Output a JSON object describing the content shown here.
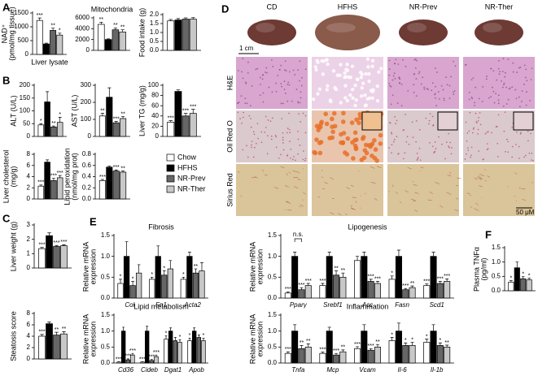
{
  "panels": [
    "A",
    "B",
    "C",
    "D",
    "E",
    "F"
  ],
  "legend": [
    {
      "name": "Chow",
      "color": "#ffffff"
    },
    {
      "name": "HFHS",
      "color": "#000000"
    },
    {
      "name": "NR-Prev",
      "color": "#666666"
    },
    {
      "name": "NR-Ther",
      "color": "#c8c8c8"
    }
  ],
  "panel_d": {
    "columns": [
      "CD",
      "HFHS",
      "NR-Prev",
      "NR-Ther"
    ],
    "rows": [
      "H&E",
      "Oil Red O",
      "Sirius Red"
    ],
    "scale_top": "1 cm",
    "scale_bottom": "50 μM"
  },
  "chart_data": [
    {
      "type": "bar",
      "ylabel": [
        "NAD⁺",
        "(pmol/mg tissue)"
      ],
      "xlabel": "Liver lysate",
      "ylim": [
        0,
        1500
      ],
      "yticks": [
        0,
        500,
        1000,
        1500
      ],
      "series": [
        {
          "values": [
            1230
          ],
          "errors": [
            90
          ],
          "stars": [
            "***"
          ]
        },
        {
          "values": [
            380
          ],
          "errors": [
            30
          ]
        },
        {
          "values": [
            870
          ],
          "errors": [
            80
          ],
          "stars": [
            "**"
          ]
        },
        {
          "values": [
            700
          ],
          "errors": [
            70
          ],
          "stars": [
            "*"
          ]
        }
      ]
    },
    {
      "type": "bar",
      "title": "Mitochondria",
      "ylim": [
        0,
        6000
      ],
      "yticks": [
        0,
        2000,
        4000,
        6000
      ],
      "series": [
        {
          "values": [
            4800
          ],
          "errors": [
            400
          ],
          "stars": [
            "**"
          ]
        },
        {
          "values": [
            2000
          ],
          "errors": [
            120
          ]
        },
        {
          "values": [
            3800
          ],
          "errors": [
            350
          ],
          "stars": [
            "**"
          ]
        },
        {
          "values": [
            3400
          ],
          "errors": [
            400
          ],
          "stars": [
            "**"
          ]
        }
      ]
    },
    {
      "type": "bar",
      "ylabel": "Food intake (g)",
      "ylim": [
        0,
        2
      ],
      "yticks": [
        {
          "value": 0,
          "label": "0.0"
        },
        0.5,
        {
          "value": 1,
          "label": "1.0"
        },
        1.5,
        {
          "value": 2,
          "label": "2.0"
        }
      ],
      "series": [
        {
          "values": [
            1.65
          ],
          "errors": [
            0.08
          ]
        },
        {
          "values": [
            1.7
          ],
          "errors": [
            0.08
          ]
        },
        {
          "values": [
            1.75
          ],
          "errors": [
            0.07
          ]
        },
        {
          "values": [
            1.75
          ],
          "errors": [
            0.08
          ]
        }
      ]
    },
    {
      "type": "bar",
      "ylabel": "ALT (U/L)",
      "ylim": [
        0,
        200
      ],
      "yticks": [
        0,
        50,
        100,
        150,
        200
      ],
      "series": [
        {
          "values": [
            45
          ],
          "errors": [
            5
          ],
          "stars": [
            "*"
          ]
        },
        {
          "values": [
            135
          ],
          "errors": [
            40
          ]
        },
        {
          "values": [
            37
          ],
          "errors": [
            4
          ],
          "stars": [
            "**"
          ]
        },
        {
          "values": [
            55
          ],
          "errors": [
            20
          ],
          "stars": [
            "*"
          ]
        }
      ]
    },
    {
      "type": "bar",
      "ylabel": "AST (U/L)",
      "ylim": [
        0,
        300
      ],
      "yticks": [
        0,
        100,
        200,
        300
      ],
      "series": [
        {
          "values": [
            120
          ],
          "errors": [
            15
          ],
          "stars": [
            "**"
          ]
        },
        {
          "values": [
            230
          ],
          "errors": [
            55
          ]
        },
        {
          "values": [
            80
          ],
          "errors": [
            8
          ],
          "stars": [
            "***"
          ]
        },
        {
          "values": [
            105
          ],
          "errors": [
            12
          ],
          "stars": [
            "**"
          ]
        }
      ]
    },
    {
      "type": "bar",
      "ylabel": "Liver TG (mg/g)",
      "ylim": [
        0,
        100
      ],
      "yticks": [
        0,
        20,
        40,
        60,
        80,
        100
      ],
      "series": [
        {
          "values": [
            28
          ],
          "errors": [
            3
          ],
          "stars": [
            "***"
          ]
        },
        {
          "values": [
            88
          ],
          "errors": [
            3
          ]
        },
        {
          "values": [
            40
          ],
          "errors": [
            5
          ],
          "stars": [
            "***"
          ]
        },
        {
          "values": [
            45
          ],
          "errors": [
            8
          ],
          "stars": [
            "***"
          ]
        }
      ]
    },
    {
      "type": "bar",
      "ylabel": [
        "Liver cholesterol",
        "(mg/g)"
      ],
      "ylim": [
        0,
        8
      ],
      "yticks": [
        0,
        2,
        4,
        6,
        8
      ],
      "series": [
        {
          "values": [
            2.3
          ],
          "errors": [
            0.2
          ],
          "stars": [
            "***"
          ]
        },
        {
          "values": [
            6.6
          ],
          "errors": [
            0.4
          ]
        },
        {
          "values": [
            3.3
          ],
          "errors": [
            0.4
          ],
          "stars": [
            "***"
          ]
        },
        {
          "values": [
            3.8
          ],
          "errors": [
            0.4
          ],
          "stars": [
            "***"
          ]
        }
      ]
    },
    {
      "type": "bar",
      "ylabel": [
        "Lipid peroxidation",
        "(nmol/mg prot)"
      ],
      "ylim": [
        0,
        0.8
      ],
      "yticks": [
        {
          "value": 0,
          "label": "0.0"
        },
        0.2,
        0.4,
        0.6,
        0.8
      ],
      "series": [
        {
          "values": [
            0.33
          ],
          "errors": [
            0.02
          ],
          "stars": [
            "***"
          ]
        },
        {
          "values": [
            0.57
          ],
          "errors": [
            0.02
          ]
        },
        {
          "values": [
            0.5
          ],
          "errors": [
            0.02
          ],
          "stars": [
            "***"
          ]
        },
        {
          "values": [
            0.48
          ],
          "errors": [
            0.02
          ],
          "stars": [
            "**"
          ]
        }
      ]
    },
    {
      "type": "bar",
      "ylabel": "Liver weight (g)",
      "ylim": [
        0,
        3
      ],
      "yticks": [
        0,
        1,
        2,
        3
      ],
      "series": [
        {
          "values": [
            1.35
          ],
          "errors": [
            0.08
          ],
          "stars": [
            "***"
          ]
        },
        {
          "values": [
            2.25
          ],
          "errors": [
            0.2
          ]
        },
        {
          "values": [
            1.5
          ],
          "errors": [
            0.07
          ],
          "stars": [
            "***"
          ]
        },
        {
          "values": [
            1.55
          ],
          "errors": [
            0.07
          ],
          "stars": [
            "***"
          ]
        }
      ]
    },
    {
      "type": "bar",
      "ylabel": "Steatosis score",
      "ylim": [
        0,
        8
      ],
      "yticks": [
        0,
        2,
        4,
        6,
        8
      ],
      "series": [
        {
          "values": [
            4.0
          ],
          "errors": [
            0.3
          ],
          "stars": [
            "***"
          ]
        },
        {
          "values": [
            6.2
          ],
          "errors": [
            0.3
          ]
        },
        {
          "values": [
            4.2
          ],
          "errors": [
            0.5
          ],
          "stars": [
            "**"
          ]
        },
        {
          "values": [
            4.4
          ],
          "errors": [
            0.4
          ],
          "stars": [
            "**"
          ]
        }
      ]
    },
    {
      "type": "bar",
      "title": "Fibrosis",
      "ylabel": [
        "Relative mRNA",
        "expression"
      ],
      "categories": [
        "Col",
        "Fn1",
        "Acta2"
      ],
      "ylim": [
        0,
        1.5
      ],
      "yticks": [
        {
          "value": 0,
          "label": "0.0"
        },
        0.5,
        {
          "value": 1,
          "label": "1.0"
        },
        1.5
      ],
      "series": [
        {
          "values": [
            0.35,
            0.45,
            0.45
          ],
          "errors": [
            0.1,
            0.05,
            0.05
          ],
          "stars": [
            "*",
            "*",
            "*"
          ]
        },
        {
          "values": [
            1.0,
            1.0,
            1.0
          ],
          "errors": [
            0.35,
            0.25,
            0.1
          ]
        },
        {
          "values": [
            0.3,
            0.55,
            0.6
          ],
          "errors": [
            0.1,
            0.1,
            0.1
          ],
          "stars": [
            "*",
            "*",
            "**"
          ]
        },
        {
          "values": [
            0.6,
            0.7,
            0.65
          ],
          "errors": [
            0.2,
            0.2,
            0.2
          ]
        }
      ]
    },
    {
      "type": "bar",
      "title": "Lipogenesis",
      "ylabel": [
        "Relative mRNA",
        "expression"
      ],
      "annotation": "n.s.",
      "categories": [
        "Pparγ",
        "Srebf1",
        "Acc",
        "Fasn",
        "Scd1"
      ],
      "ylim": [
        0,
        1.5
      ],
      "yticks": [
        {
          "value": 0,
          "label": "0.0"
        },
        0.5,
        {
          "value": 1,
          "label": "1.0"
        },
        1.5
      ],
      "series": [
        {
          "values": [
            0.12,
            0.3,
            0.9,
            0.45,
            0.3
          ],
          "errors": [
            0.03,
            0.05,
            0.1,
            0.08,
            0.04
          ],
          "stars": [
            "***",
            "***",
            null,
            "*",
            "***"
          ]
        },
        {
          "values": [
            1.0,
            1.0,
            1.0,
            1.0,
            1.0
          ],
          "errors": [
            0.1,
            0.1,
            0.1,
            0.15,
            0.1
          ]
        },
        {
          "values": [
            0.2,
            0.55,
            0.4,
            0.2,
            0.35
          ],
          "errors": [
            0.05,
            0.1,
            0.05,
            0.03,
            0.05
          ],
          "stars": [
            "***",
            "**",
            "***",
            "***",
            "***"
          ]
        },
        {
          "values": [
            0.3,
            0.5,
            0.35,
            0.25,
            0.4
          ],
          "errors": [
            0.05,
            0.1,
            0.05,
            0.04,
            0.06
          ],
          "stars": [
            "***",
            "**",
            "***",
            "**",
            "***"
          ]
        }
      ]
    },
    {
      "type": "bar",
      "title": "Lipid metabolism",
      "ylabel": [
        "Relative mRNA",
        "expression"
      ],
      "categories": [
        "Cd36",
        "Cideb",
        "Dgat1",
        "Apob"
      ],
      "ylim": [
        0,
        1.5
      ],
      "yticks": [
        {
          "value": 0,
          "label": "0.0"
        },
        0.5,
        {
          "value": 1,
          "label": "1.0"
        },
        1.5
      ],
      "series": [
        {
          "values": [
            0.03,
            0.03,
            0.75,
            0.7
          ],
          "errors": [
            0.01,
            0.01,
            0.1,
            0.08
          ],
          "stars": [
            "***",
            "***",
            "*",
            "*"
          ]
        },
        {
          "values": [
            1.0,
            1.0,
            1.0,
            1.0
          ],
          "errors": [
            0.12,
            0.15,
            0.1,
            0.1
          ]
        },
        {
          "values": [
            0.1,
            0.08,
            0.7,
            0.8
          ],
          "errors": [
            0.03,
            0.03,
            0.1,
            0.08
          ],
          "stars": [
            "***",
            "***",
            null,
            null
          ]
        },
        {
          "values": [
            0.25,
            0.2,
            0.65,
            0.7
          ],
          "errors": [
            0.05,
            0.05,
            0.08,
            0.08
          ],
          "stars": [
            "***",
            "***",
            "*",
            "*"
          ]
        }
      ]
    },
    {
      "type": "bar",
      "title": "Inflammation",
      "ylabel": [
        "Relative mRNA",
        "expression"
      ],
      "categories": [
        "Tnfa",
        "Mcp",
        "Vcam",
        "Il-6",
        "Il-1b"
      ],
      "ylim": [
        0,
        1.5
      ],
      "yticks": [
        {
          "value": 0,
          "label": "0.0"
        },
        0.5,
        {
          "value": 1,
          "label": "1.0"
        },
        1.5
      ],
      "series": [
        {
          "values": [
            0.3,
            0.3,
            0.45,
            0.7,
            0.65
          ],
          "errors": [
            0.05,
            0.04,
            0.06,
            0.1,
            0.1
          ],
          "stars": [
            "***",
            "***",
            "***",
            "*",
            "*"
          ]
        },
        {
          "values": [
            1.0,
            1.0,
            1.0,
            1.0,
            1.0
          ],
          "errors": [
            0.2,
            0.12,
            0.2,
            0.25,
            0.2
          ]
        },
        {
          "values": [
            0.45,
            0.25,
            0.4,
            0.55,
            0.55
          ],
          "errors": [
            0.1,
            0.05,
            0.05,
            0.08,
            0.08
          ],
          "stars": [
            "**",
            "***",
            "***",
            "*",
            "*"
          ]
        },
        {
          "values": [
            0.5,
            0.35,
            0.5,
            0.55,
            0.5
          ],
          "errors": [
            0.1,
            0.06,
            0.08,
            0.1,
            0.06
          ],
          "stars": [
            "**",
            "**",
            "**",
            "*",
            "**"
          ]
        }
      ]
    },
    {
      "type": "bar",
      "ylabel": [
        "Plasma TNFα",
        "(pg/ml)"
      ],
      "ylim": [
        0,
        1.5
      ],
      "yticks": [
        {
          "value": 0,
          "label": "0.0"
        },
        0.5,
        {
          "value": 1,
          "label": "1.0"
        },
        1.5
      ],
      "series": [
        {
          "values": [
            0.3
          ],
          "errors": [
            0.05
          ],
          "stars": [
            "*"
          ]
        },
        {
          "values": [
            0.8
          ],
          "errors": [
            0.2
          ]
        },
        {
          "values": [
            0.42
          ],
          "errors": [
            0.07
          ],
          "stars": [
            "*"
          ]
        },
        {
          "values": [
            0.38
          ],
          "errors": [
            0.06
          ],
          "stars": [
            "*"
          ]
        }
      ]
    }
  ]
}
